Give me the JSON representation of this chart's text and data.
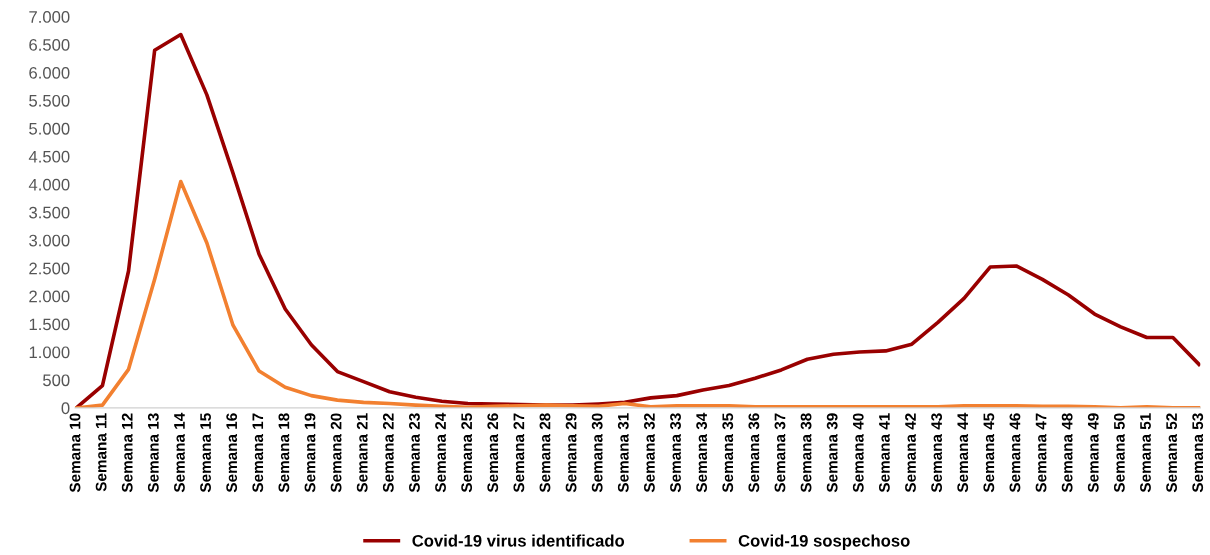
{
  "chart_data": {
    "type": "line",
    "categories": [
      "Semana 10",
      "Semana 11",
      "Semana 12",
      "Semana 13",
      "Semana 14",
      "Semana 15",
      "Semana 16",
      "Semana 17",
      "Semana 18",
      "Semana 19",
      "Semana 20",
      "Semana 21",
      "Semana 22",
      "Semana 23",
      "Semana 24",
      "Semana 25",
      "Semana 26",
      "Semana 27",
      "Semana 28",
      "Semana 29",
      "Semana 30",
      "Semana 31",
      "Semana 32",
      "Semana 33",
      "Semana 34",
      "Semana 35",
      "Semana 36",
      "Semana 37",
      "Semana 38",
      "Semana 39",
      "Semana 40",
      "Semana 41",
      "Semana 42",
      "Semana 43",
      "Semana 44",
      "Semana 45",
      "Semana 46",
      "Semana 47",
      "Semana 48",
      "Semana 49",
      "Semana 50",
      "Semana 51",
      "Semana 52",
      "Semana 53"
    ],
    "series": [
      {
        "name": "Covid-19 virus identificado",
        "color": "#990000",
        "values": [
          0,
          400,
          2450,
          6400,
          6680,
          5600,
          4200,
          2750,
          1770,
          1130,
          650,
          470,
          290,
          190,
          120,
          80,
          70,
          60,
          50,
          50,
          70,
          100,
          180,
          220,
          320,
          400,
          530,
          680,
          870,
          960,
          1000,
          1020,
          1140,
          1530,
          1960,
          2520,
          2540,
          2300,
          2020,
          1680,
          1450,
          1260,
          1260,
          780
        ]
      },
      {
        "name": "Covid-19 sospechoso",
        "color": "#f28030",
        "values": [
          0,
          50,
          690,
          2300,
          4050,
          2950,
          1480,
          660,
          370,
          220,
          140,
          100,
          80,
          50,
          30,
          10,
          30,
          40,
          50,
          40,
          30,
          80,
          20,
          40,
          40,
          40,
          20,
          20,
          20,
          20,
          20,
          20,
          20,
          20,
          40,
          40,
          40,
          30,
          30,
          20,
          0,
          20,
          0,
          0
        ]
      }
    ],
    "ylim": [
      0,
      7000
    ],
    "yticks": [
      {
        "value": 0,
        "label": "0"
      },
      {
        "value": 500,
        "label": "500"
      },
      {
        "value": 1000,
        "label": "1.000"
      },
      {
        "value": 1500,
        "label": "1.500"
      },
      {
        "value": 2000,
        "label": "2.000"
      },
      {
        "value": 2500,
        "label": "2.500"
      },
      {
        "value": 3000,
        "label": "3.000"
      },
      {
        "value": 3500,
        "label": "3.500"
      },
      {
        "value": 4000,
        "label": "4.000"
      },
      {
        "value": 4500,
        "label": "4.500"
      },
      {
        "value": 5000,
        "label": "5.000"
      },
      {
        "value": 5500,
        "label": "5.500"
      },
      {
        "value": 6000,
        "label": "6.000"
      },
      {
        "value": 6500,
        "label": "6.500"
      },
      {
        "value": 7000,
        "label": "7.000"
      }
    ],
    "grid": false,
    "legend": "bottom",
    "marker": "none",
    "line_style": "solid"
  }
}
